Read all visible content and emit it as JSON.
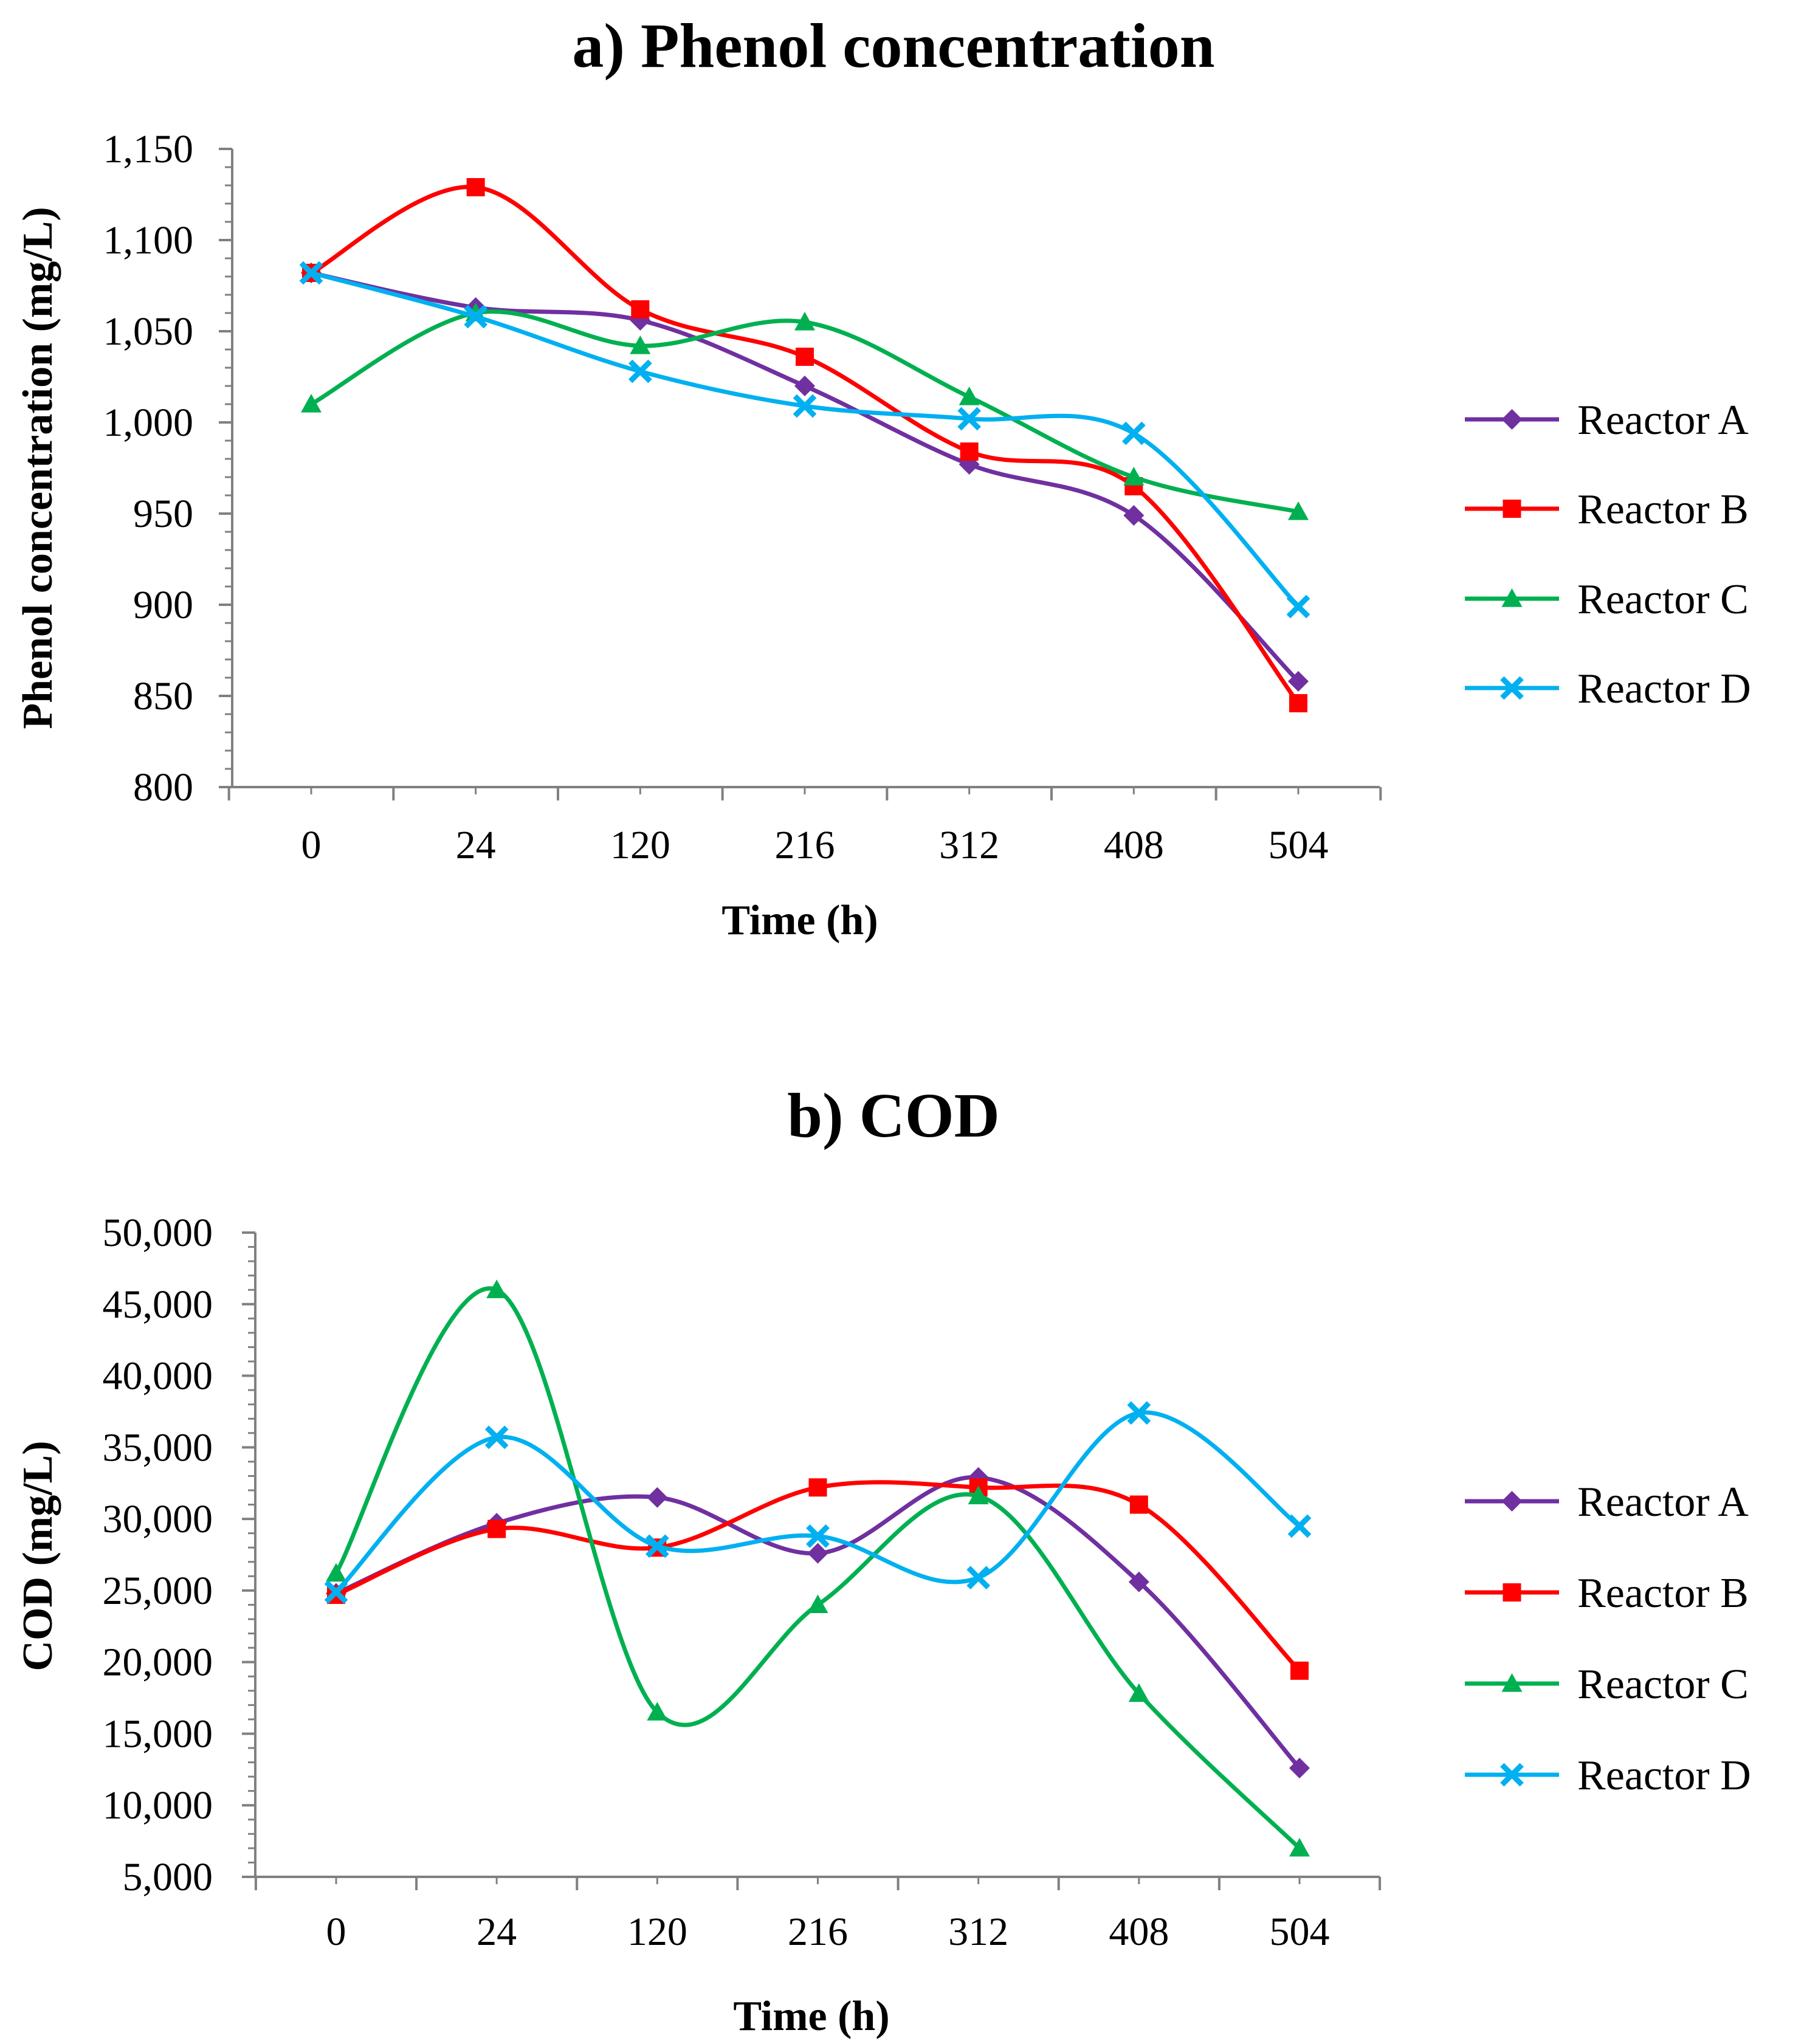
{
  "chart_data": [
    {
      "type": "line",
      "title": "a) Phenol concentration",
      "xlabel": "Time (h)",
      "ylabel": "Phenol concentration (mg/L)",
      "categories": [
        "0",
        "24",
        "120",
        "216",
        "312",
        "408",
        "504"
      ],
      "ylim": [
        800,
        1150
      ],
      "yticks": [
        800,
        850,
        900,
        950,
        1000,
        1050,
        1100,
        1150
      ],
      "ytick_labels": [
        "800",
        "850",
        "900",
        "950",
        "1,000",
        "1,050",
        "1,100",
        "1,150"
      ],
      "legend_position": "right",
      "series": [
        {
          "name": "Reactor A",
          "color": "#7030A0",
          "marker": "diamond",
          "values": [
            1082,
            1063,
            1056,
            1020,
            977,
            949,
            858
          ]
        },
        {
          "name": "Reactor B",
          "color": "#FF0000",
          "marker": "square",
          "values": [
            1082,
            1129,
            1062,
            1036,
            984,
            965,
            846
          ]
        },
        {
          "name": "Reactor C",
          "color": "#00B050",
          "marker": "triangle",
          "values": [
            1010,
            1060,
            1042,
            1055,
            1014,
            970,
            951
          ]
        },
        {
          "name": "Reactor D",
          "color": "#00B0F0",
          "marker": "x",
          "values": [
            1082,
            1058,
            1028,
            1009,
            1002,
            994,
            899
          ]
        }
      ]
    },
    {
      "type": "line",
      "title": "b) COD",
      "xlabel": "Time (h)",
      "ylabel": "COD (mg/L)",
      "categories": [
        "0",
        "24",
        "120",
        "216",
        "312",
        "408",
        "504"
      ],
      "ylim": [
        5000,
        50000
      ],
      "yticks": [
        5000,
        10000,
        15000,
        20000,
        25000,
        30000,
        35000,
        40000,
        45000,
        50000
      ],
      "ytick_labels": [
        "5,000",
        "10,000",
        "15,000",
        "20,000",
        "25,000",
        "30,000",
        "35,000",
        "40,000",
        "45,000",
        "50,000"
      ],
      "legend_position": "right",
      "series": [
        {
          "name": "Reactor A",
          "color": "#7030A0",
          "marker": "diamond",
          "values": [
            24800,
            29700,
            31500,
            27600,
            32900,
            25600,
            12600
          ]
        },
        {
          "name": "Reactor B",
          "color": "#FF0000",
          "marker": "square",
          "values": [
            24700,
            29300,
            28000,
            32200,
            32200,
            31000,
            19400
          ]
        },
        {
          "name": "Reactor C",
          "color": "#00B050",
          "marker": "triangle",
          "values": [
            26200,
            46000,
            16500,
            24000,
            31600,
            17800,
            7000
          ]
        },
        {
          "name": "Reactor D",
          "color": "#00B0F0",
          "marker": "x",
          "values": [
            24900,
            35700,
            28100,
            28800,
            25900,
            37400,
            29500
          ]
        }
      ]
    }
  ]
}
